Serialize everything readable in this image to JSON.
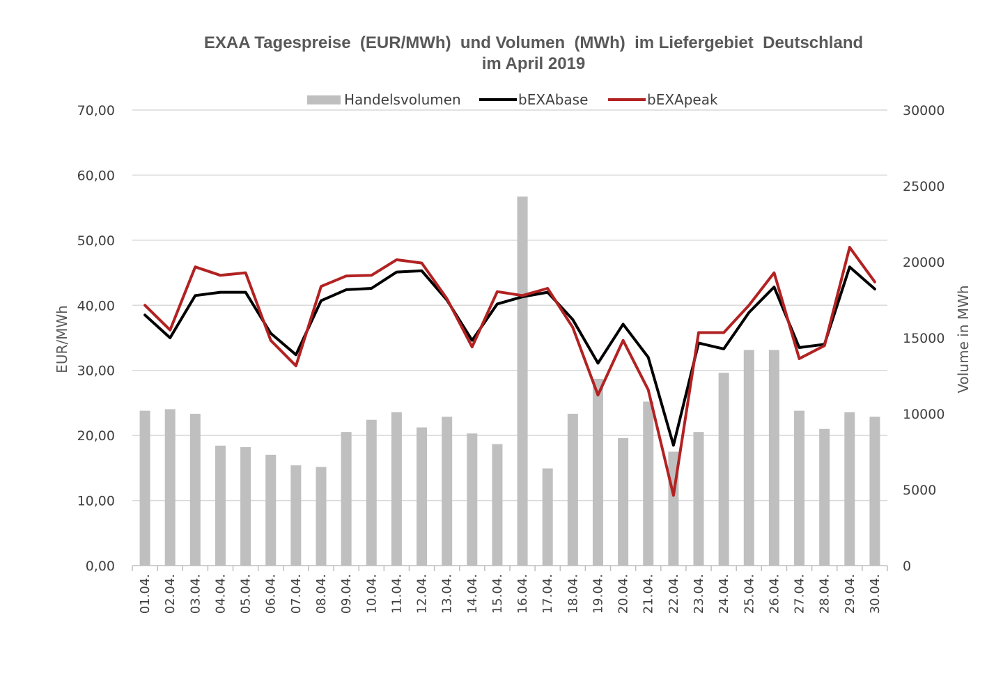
{
  "chart_data": {
    "type": "bar+line",
    "title_line1": "EXAA Tagespreise  (EUR/MWh)  und Volumen  (MWh)  im Liefergebiet  Deutschland",
    "title_line2": "im April 2019",
    "ylabel_left": "EUR/MWh",
    "ylabel_right": "Volume in MWh",
    "ylim_left": [
      0,
      70
    ],
    "ylim_right": [
      0,
      30000
    ],
    "yticks_left": [
      "0,00",
      "10,00",
      "20,00",
      "30,00",
      "40,00",
      "50,00",
      "60,00",
      "70,00"
    ],
    "yticks_right": [
      "0",
      "5000",
      "10000",
      "15000",
      "20000",
      "25000",
      "30000"
    ],
    "grid": true,
    "legend_position": "top",
    "categories": [
      "01.04.",
      "02.04.",
      "03.04.",
      "04.04.",
      "05.04.",
      "06.04.",
      "07.04.",
      "08.04.",
      "09.04.",
      "10.04.",
      "11.04.",
      "12.04.",
      "13.04.",
      "14.04.",
      "15.04.",
      "16.04.",
      "17.04.",
      "18.04.",
      "19.04.",
      "20.04.",
      "21.04.",
      "22.04.",
      "23.04.",
      "24.04.",
      "25.04.",
      "26.04.",
      "27.04.",
      "28.04.",
      "29.04.",
      "30.04."
    ],
    "series": [
      {
        "name": "Handelsvolumen",
        "type": "bar",
        "axis": "right",
        "color": "#bfbfbf",
        "values": [
          10200,
          10300,
          10000,
          7900,
          7800,
          7300,
          6600,
          6500,
          8800,
          9600,
          10100,
          9100,
          9800,
          8700,
          8000,
          24300,
          6400,
          10000,
          12300,
          8400,
          10800,
          7500,
          8800,
          12700,
          14200,
          14200,
          10200,
          9000,
          10100,
          9800
        ]
      },
      {
        "name": "bEXAbase",
        "type": "line",
        "axis": "left",
        "color": "#000000",
        "values": [
          38.5,
          35.0,
          41.5,
          42.0,
          42.0,
          35.7,
          32.4,
          40.7,
          42.4,
          42.6,
          45.1,
          45.3,
          40.8,
          34.6,
          40.2,
          41.3,
          42.0,
          37.8,
          31.1,
          37.1,
          32.0,
          18.5,
          34.2,
          33.3,
          38.9,
          42.8,
          33.5,
          34.0,
          45.9,
          42.5
        ]
      },
      {
        "name": "bEXApeak",
        "type": "line",
        "axis": "left",
        "color": "#b22222",
        "values": [
          40.0,
          36.2,
          45.9,
          44.6,
          45.0,
          34.6,
          30.7,
          42.9,
          44.5,
          44.6,
          47.0,
          46.5,
          41.0,
          33.6,
          42.1,
          41.5,
          42.6,
          36.6,
          26.2,
          34.6,
          27.0,
          10.8,
          35.8,
          35.8,
          40.0,
          45.0,
          31.8,
          33.8,
          48.9,
          43.6
        ]
      }
    ]
  }
}
